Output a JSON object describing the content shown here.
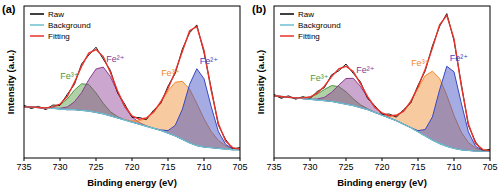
{
  "chart_data": [
    {
      "type": "line",
      "title": "(a)",
      "x_label": "Binding energy (eV)",
      "y_label": "Intensity (a.u.)",
      "x": [
        735,
        734,
        733,
        732,
        731,
        730,
        729,
        728,
        727,
        726,
        725,
        724,
        723,
        722,
        721,
        720,
        719,
        718,
        717,
        716,
        715,
        714,
        713,
        712,
        711,
        710,
        709,
        708,
        707,
        706,
        705
      ],
      "xlim": [
        735,
        705
      ],
      "xticks": [
        735,
        730,
        725,
        720,
        715,
        710,
        705
      ],
      "ylim": [
        0,
        110
      ],
      "tick_labels": "x",
      "grid": false,
      "legend": "upper left",
      "series": [
        {
          "name": "Raw",
          "type": "line",
          "color": "#000000",
          "values": [
            38.2,
            35.9,
            37.4,
            35.1,
            38.3,
            38.1,
            46.0,
            53.2,
            68.1,
            74.5,
            80.2,
            71.6,
            63.4,
            47.1,
            38.9,
            29.4,
            29.3,
            27.8,
            34.6,
            39.5,
            52.0,
            61.1,
            78.9,
            90.6,
            96.3,
            76.2,
            50.5,
            23.6,
            13.4,
            6.5,
            7.6
          ]
        },
        {
          "name": "Background",
          "type": "line",
          "color": "#6cbfd0",
          "values": [
            37,
            37,
            36.5,
            36,
            36,
            35.5,
            35,
            35,
            34.5,
            34,
            33,
            32,
            30.5,
            29,
            27.5,
            26,
            24.5,
            23,
            21.5,
            20,
            18,
            16,
            13.5,
            11,
            9,
            8,
            7.5,
            7,
            6.5,
            6,
            6
          ]
        },
        {
          "name": "Fitting",
          "type": "line",
          "color": "#e8322a",
          "values": [
            37,
            37,
            36.5,
            36.2,
            37.0,
            39.0,
            44.5,
            54.7,
            66.5,
            75.9,
            78.5,
            73.4,
            61.9,
            48.5,
            37.4,
            30.5,
            28.1,
            29.0,
            33.2,
            40.7,
            50.3,
            62.4,
            77.3,
            92.1,
            95.1,
            77.8,
            48.9,
            24.8,
            12.3,
            7.4,
            6.4
          ]
        },
        {
          "name": "Fe³⁺",
          "type": "area",
          "color": "#4f9a3c",
          "values": [
            37,
            37,
            36.5,
            36.2,
            36.9,
            38.5,
            42.6,
            49.1,
            53.7,
            53.2,
            47.1,
            39.6,
            33.5,
            29.9,
            27.7,
            26,
            24.5,
            23,
            21.5,
            20,
            18,
            16,
            13.5,
            11,
            9,
            8,
            7.5,
            7,
            6.5,
            6,
            6
          ]
        },
        {
          "name": "Fe²⁺",
          "type": "area",
          "color": "#8b3a92",
          "values": [
            37,
            37,
            36.5,
            36,
            36.1,
            36,
            36.9,
            40.6,
            47.3,
            56.7,
            64.4,
            65.8,
            58.9,
            47.6,
            36.9,
            29.7,
            25.7,
            23.3,
            21.5,
            20,
            18,
            16,
            13.5,
            11,
            9,
            8,
            7.5,
            7,
            6.5,
            6,
            6
          ]
        },
        {
          "name": "Fe³⁺",
          "type": "area",
          "color": "#f08a2c",
          "values": [
            37,
            37,
            36.5,
            36,
            36,
            35.5,
            35,
            35,
            34.5,
            34,
            33,
            32,
            30.5,
            29,
            27.8,
            26.8,
            26.9,
            28.7,
            33.2,
            40.4,
            48.5,
            54.8,
            55.5,
            49.8,
            39.5,
            28.4,
            19.2,
            12.7,
            8.9,
            6.8,
            6.3
          ]
        },
        {
          "name": "Fe²⁺",
          "type": "area",
          "color": "#3848c4",
          "values": [
            37,
            37,
            36.5,
            36,
            36,
            35.5,
            35,
            35,
            34.5,
            34,
            33,
            32,
            30.5,
            29,
            27.5,
            26,
            24.5,
            23,
            21.5,
            20.3,
            19.8,
            23.6,
            35.3,
            53.3,
            64.6,
            57.4,
            37.2,
            19.1,
            9.9,
            6.6,
            6.1
          ]
        }
      ]
    },
    {
      "type": "line",
      "title": "(b)",
      "x_label": "Binding energy (eV)",
      "y_label": "Intensity (a.u.)",
      "x": [
        735,
        734,
        733,
        732,
        731,
        730,
        729,
        728,
        727,
        726,
        725,
        724,
        723,
        722,
        721,
        720,
        719,
        718,
        717,
        716,
        715,
        714,
        713,
        712,
        711,
        710,
        709,
        708,
        707,
        706,
        705
      ],
      "xlim": [
        735,
        705
      ],
      "xticks": [
        735,
        730,
        725,
        720,
        715,
        710,
        705
      ],
      "ylim": [
        0,
        110
      ],
      "tick_labels": "x",
      "grid": false,
      "legend": "upper left",
      "series": [
        {
          "name": "Raw",
          "type": "line",
          "color": "#000000",
          "values": [
            46.1,
            43.2,
            45.0,
            42.6,
            44.4,
            43.0,
            48.1,
            50.9,
            60.2,
            63.1,
            68.0,
            61.3,
            55.2,
            43.1,
            37.9,
            31.5,
            31.8,
            29.6,
            35.0,
            39.8,
            52.6,
            63.0,
            81.1,
            95.2,
            104.5,
            84.9,
            54.0,
            23.5,
            11.6,
            5.2,
            6.4
          ]
        },
        {
          "name": "Background",
          "type": "line",
          "color": "#6cbfd0",
          "values": [
            45,
            44.5,
            44,
            43.5,
            43,
            42.5,
            42,
            41.5,
            41,
            40,
            39,
            38,
            36.5,
            35,
            33,
            31,
            29,
            27,
            24.5,
            22,
            19,
            16,
            13,
            10.5,
            8.5,
            7,
            6,
            5.5,
            5,
            5,
            5
          ]
        },
        {
          "name": "Fitting",
          "type": "line",
          "color": "#e8322a",
          "values": [
            45,
            44.5,
            44,
            43.5,
            43.5,
            44.1,
            46.9,
            52.0,
            58.9,
            64.5,
            66.4,
            62.6,
            53.9,
            44.4,
            36.8,
            32.6,
            30.6,
            30.9,
            33.9,
            41.0,
            51.4,
            64.2,
            79.5,
            96.4,
            103.2,
            86.2,
            52.8,
            24.6,
            10.5,
            6.1,
            5.3
          ]
        },
        {
          "name": "Fe³⁺",
          "type": "area",
          "color": "#4f9a3c",
          "values": [
            45,
            44.5,
            44,
            43.5,
            43.5,
            44.1,
            46.2,
            49.6,
            52.4,
            51.7,
            47.9,
            42.9,
            38.5,
            35.6,
            33.1,
            31,
            29,
            27,
            24.5,
            22,
            19,
            16,
            13,
            10.5,
            8.5,
            7,
            6,
            5.5,
            5,
            5,
            5
          ]
        },
        {
          "name": "Fe²⁺",
          "type": "area",
          "color": "#8b3a92",
          "values": [
            45,
            44.5,
            44,
            43.5,
            43,
            42.5,
            42.7,
            43.9,
            47.5,
            52.8,
            57.5,
            57.7,
            51.9,
            43.8,
            36.7,
            32.2,
            29.3,
            27,
            24.5,
            22,
            19,
            16,
            13,
            10.5,
            8.5,
            7,
            6,
            5.5,
            5,
            5,
            5
          ]
        },
        {
          "name": "Fe³⁺",
          "type": "area",
          "color": "#f08a2c",
          "values": [
            45,
            44.5,
            44,
            43.5,
            43,
            42.5,
            42,
            41.5,
            41,
            40,
            39,
            38,
            36.5,
            35,
            33,
            31.4,
            30.3,
            30.9,
            33.9,
            41.0,
            50.6,
            59.6,
            62.8,
            57.6,
            45.3,
            30.8,
            18.8,
            11.2,
            7.1,
            5.6,
            5.2
          ]
        },
        {
          "name": "Fe²⁺",
          "type": "area",
          "color": "#3848c4",
          "values": [
            45,
            44.5,
            44,
            43.5,
            43,
            42.5,
            42,
            41.5,
            41,
            40,
            39,
            38,
            36.5,
            35,
            33,
            31,
            29,
            27,
            24.5,
            22,
            19.8,
            20.6,
            29.7,
            49.3,
            66.4,
            62.4,
            40.0,
            18.9,
            8.4,
            5.5,
            5.1
          ]
        }
      ]
    }
  ]
}
